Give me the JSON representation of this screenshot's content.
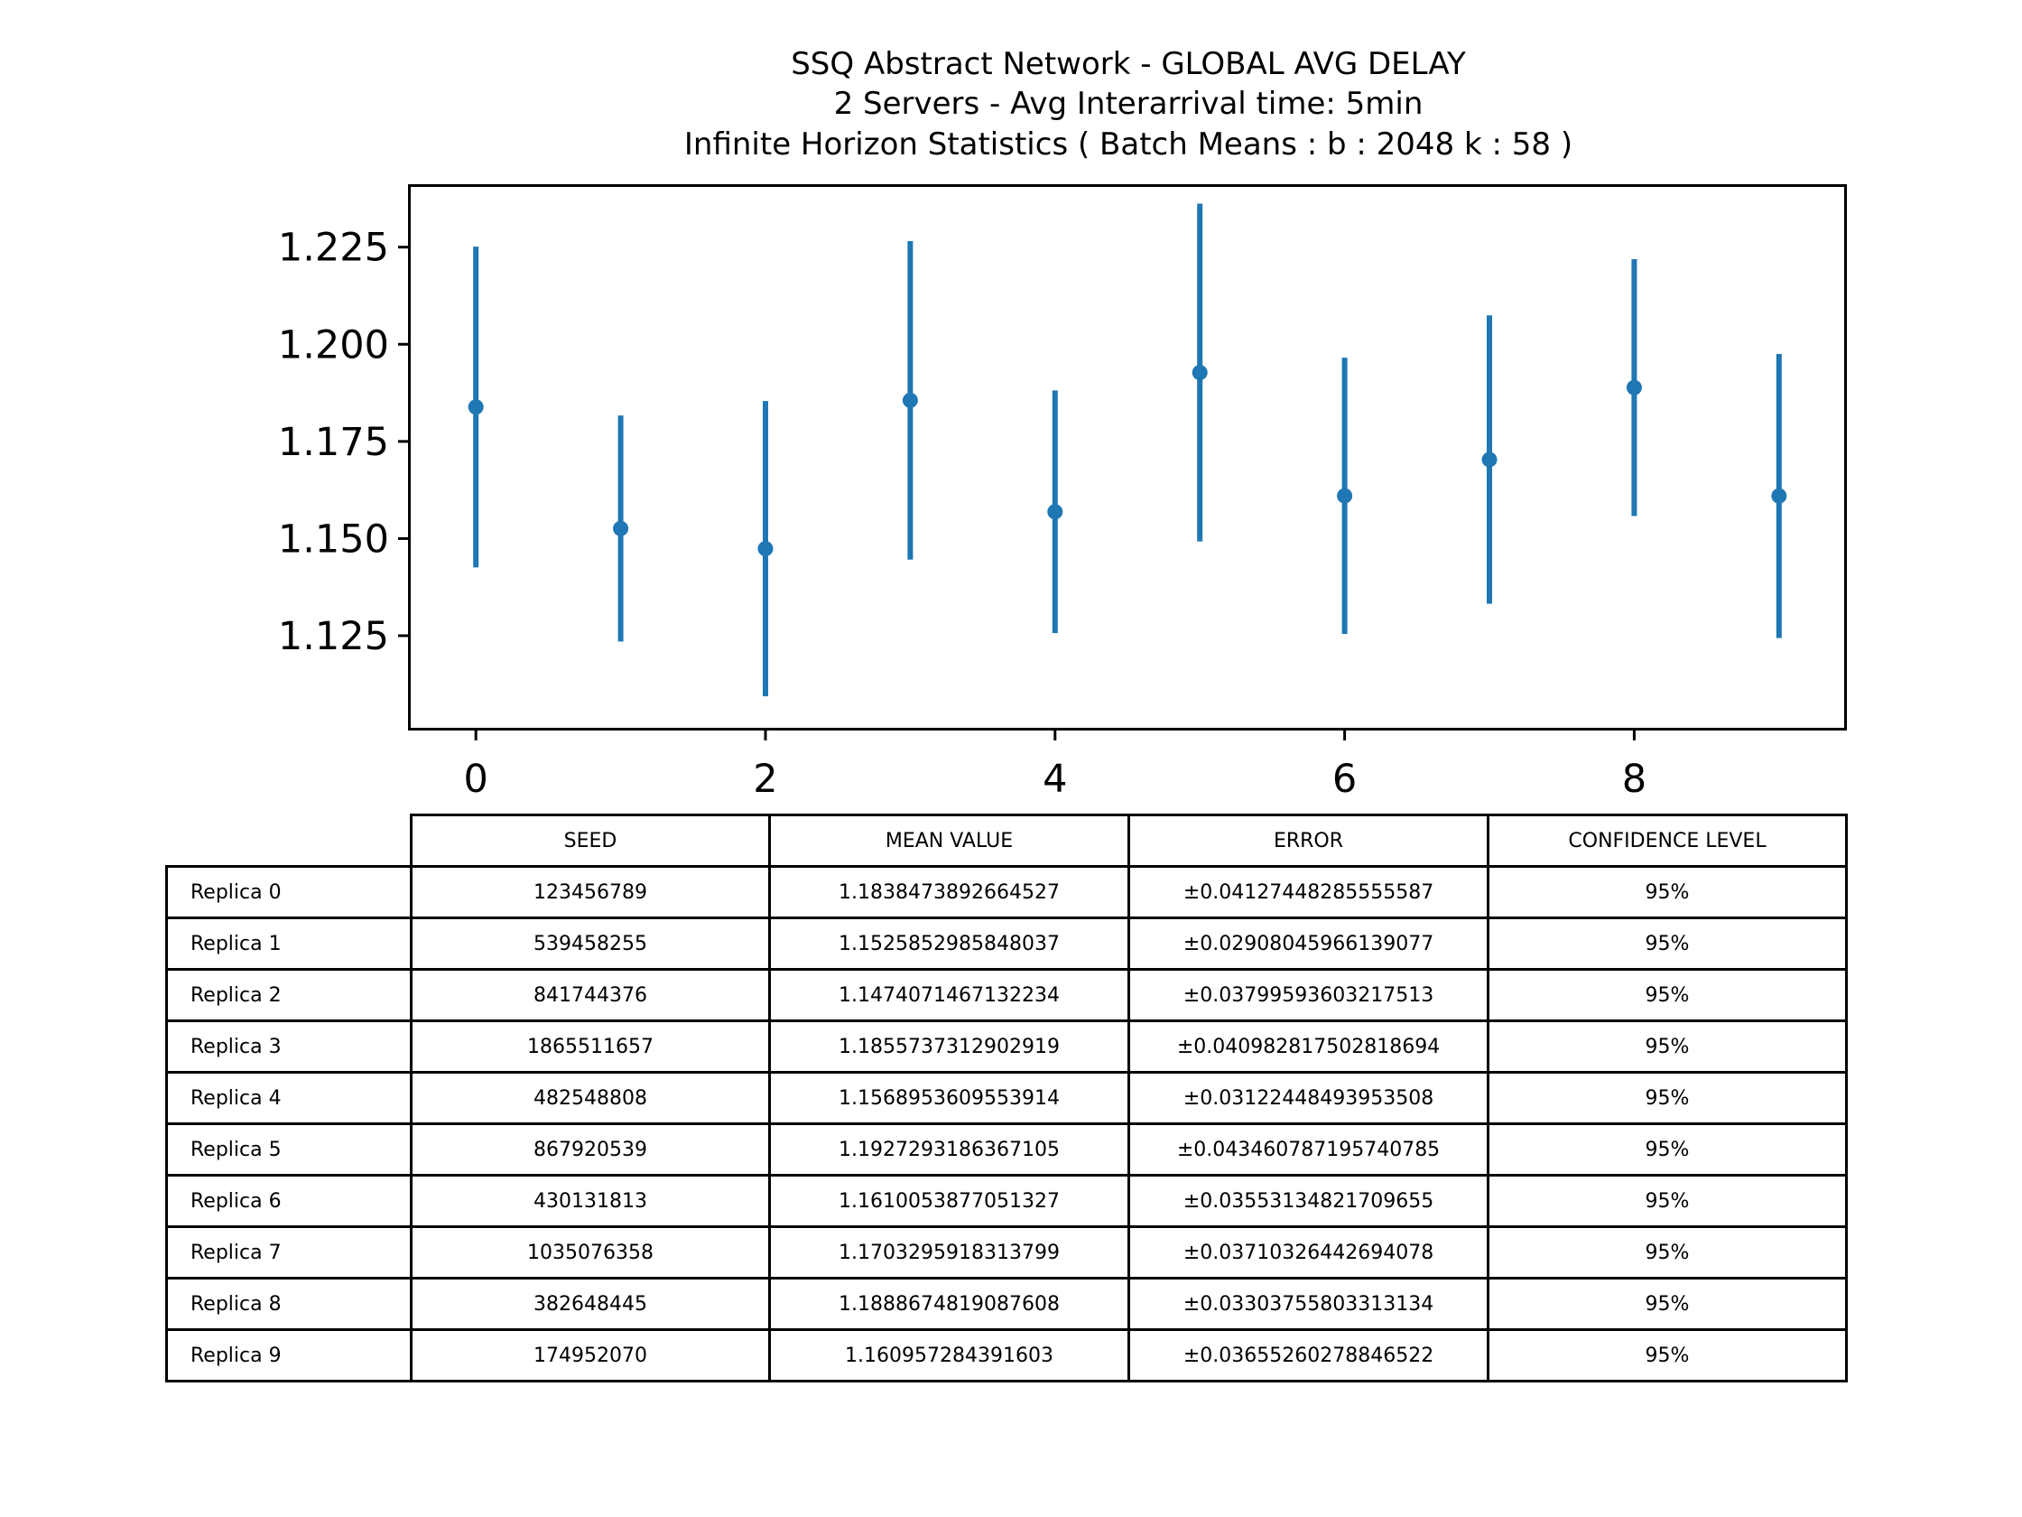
{
  "chart_data": {
    "type": "errorbar",
    "title": "SSQ Abstract Network - GLOBAL AVG DELAY",
    "subtitle_lines": [
      "2 Servers -  Avg Interarrival time: 5min",
      "Infinite Horizon Statistics ( Batch Means : b : 2048  k : 58 )"
    ],
    "xlabel": "",
    "ylabel": "",
    "x": [
      0,
      1,
      2,
      3,
      4,
      5,
      6,
      7,
      8,
      9
    ],
    "values": [
      1.1838473892664527,
      1.1525852985848037,
      1.1474071467132234,
      1.1855737312902919,
      1.1568953609553914,
      1.1927293186367105,
      1.1610053877051327,
      1.1703295918313799,
      1.1888674819087608,
      1.160957284391603
    ],
    "errors": [
      0.04127448285555587,
      0.02908045966139077,
      0.03799593603217513,
      0.040982817502818694,
      0.03122448493953508,
      0.043460787195740785,
      0.03553134821709655,
      0.03710326442694078,
      0.03303755803313134,
      0.03655260278846522
    ],
    "xlim": [
      -0.45,
      9.45
    ],
    "ylim": [
      1.1013,
      1.2405
    ],
    "x_ticks": [
      0,
      2,
      4,
      6,
      8
    ],
    "y_ticks": [
      1.125,
      1.15,
      1.175,
      1.2,
      1.225
    ],
    "y_tick_labels": [
      "1.125",
      "1.150",
      "1.175",
      "1.200",
      "1.225"
    ],
    "color": "#1f77b4",
    "grid": false
  },
  "table": {
    "columns": [
      "SEED",
      "MEAN VALUE",
      "ERROR",
      "CONFIDENCE LEVEL"
    ],
    "rows": [
      {
        "label": "Replica 0",
        "seed": "123456789",
        "mean": "1.1838473892664527",
        "error": "±0.04127448285555587",
        "confidence": "95%"
      },
      {
        "label": "Replica 1",
        "seed": "539458255",
        "mean": "1.1525852985848037",
        "error": "±0.02908045966139077",
        "confidence": "95%"
      },
      {
        "label": "Replica 2",
        "seed": "841744376",
        "mean": "1.1474071467132234",
        "error": "±0.03799593603217513",
        "confidence": "95%"
      },
      {
        "label": "Replica 3",
        "seed": "1865511657",
        "mean": "1.1855737312902919",
        "error": "±0.040982817502818694",
        "confidence": "95%"
      },
      {
        "label": "Replica 4",
        "seed": "482548808",
        "mean": "1.1568953609553914",
        "error": "±0.03122448493953508",
        "confidence": "95%"
      },
      {
        "label": "Replica 5",
        "seed": "867920539",
        "mean": "1.1927293186367105",
        "error": "±0.043460787195740785",
        "confidence": "95%"
      },
      {
        "label": "Replica 6",
        "seed": "430131813",
        "mean": "1.1610053877051327",
        "error": "±0.03553134821709655",
        "confidence": "95%"
      },
      {
        "label": "Replica 7",
        "seed": "1035076358",
        "mean": "1.1703295918313799",
        "error": "±0.03710326442694078",
        "confidence": "95%"
      },
      {
        "label": "Replica 8",
        "seed": "382648445",
        "mean": "1.1888674819087608",
        "error": "±0.03303755803313134",
        "confidence": "95%"
      },
      {
        "label": "Replica 9",
        "seed": "174952070",
        "mean": "1.160957284391603",
        "error": "±0.03655260278846522",
        "confidence": "95%"
      }
    ]
  }
}
